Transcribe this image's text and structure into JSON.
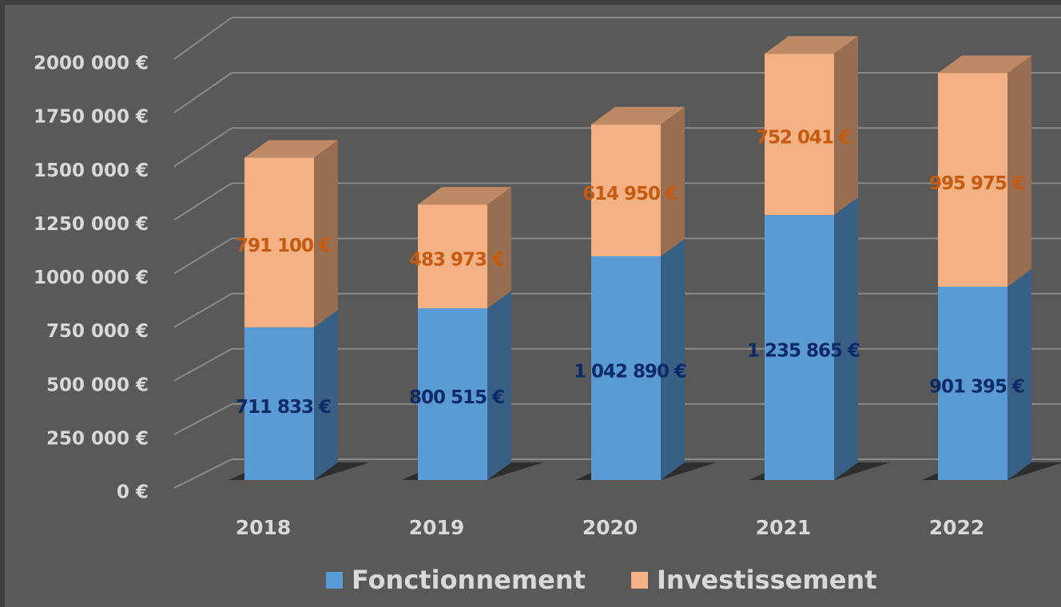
{
  "chart_data": {
    "type": "bar3d_stacked",
    "categories": [
      "2018",
      "2019",
      "2020",
      "2021",
      "2022"
    ],
    "series": [
      {
        "name": "Fonctionnement",
        "color": "#5b9bd5",
        "values": [
          711833,
          800515,
          1042890,
          1235865,
          901395
        ],
        "value_labels": [
          "711 833 €",
          "800 515 €",
          "1 042 890 €",
          "1 235 865 €",
          "901 395 €"
        ],
        "label_color": "#0b2a66"
      },
      {
        "name": "Investissement",
        "color": "#f4b183",
        "values": [
          791100,
          483973,
          614950,
          752041,
          995975
        ],
        "value_labels": [
          "791 100 €",
          "483 973 €",
          "614 950 €",
          "752 041 €",
          "995 975 €"
        ],
        "label_color": "#c55a11"
      }
    ],
    "ylim": [
      0,
      2000000
    ],
    "yticks": [
      {
        "value": 0,
        "label": "0 €"
      },
      {
        "value": 250000,
        "label": "250 000 €"
      },
      {
        "value": 500000,
        "label": "500 000 €"
      },
      {
        "value": 750000,
        "label": "750 000 €"
      },
      {
        "value": 1000000,
        "label": "1000 000 €"
      },
      {
        "value": 1250000,
        "label": "1250 000 €"
      },
      {
        "value": 1500000,
        "label": "1500 000 €"
      },
      {
        "value": 1750000,
        "label": "1750 000 €"
      },
      {
        "value": 2000000,
        "label": "2000 000 €"
      }
    ],
    "grid": true,
    "legend": "bottom"
  }
}
